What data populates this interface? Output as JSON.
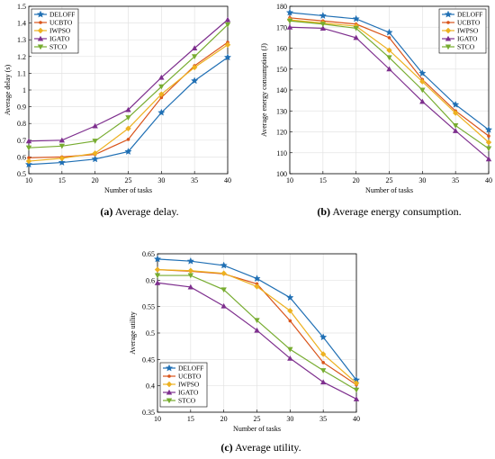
{
  "chart_data": [
    {
      "type": "line",
      "caption_tag": "(a)",
      "caption_text": "Average delay.",
      "xlabel": "Number of tasks",
      "ylabel": "Average delay (s)",
      "x": [
        10,
        15,
        20,
        25,
        30,
        35,
        40
      ],
      "xlim": [
        10,
        40
      ],
      "ylim": [
        0.5,
        1.5
      ],
      "xticks": [
        "10",
        "15",
        "20",
        "25",
        "30",
        "35",
        "40"
      ],
      "yticks": [
        "0.5",
        "0.6",
        "0.7",
        "0.8",
        "0.9",
        "1",
        "1.1",
        "1.2",
        "1.3",
        "1.4",
        "1.5"
      ],
      "ytick_values": [
        0.5,
        0.6,
        0.7,
        0.8,
        0.9,
        1.0,
        1.1,
        1.2,
        1.3,
        1.4,
        1.5
      ],
      "legend_position": "top-left",
      "grid": true,
      "series": [
        {
          "name": "DELOFF",
          "color": "#1f6fb4",
          "marker": "star",
          "values": [
            0.555,
            0.567,
            0.587,
            0.632,
            0.865,
            1.055,
            1.195
          ]
        },
        {
          "name": "UCBTO",
          "color": "#d9541a",
          "marker": "dot",
          "values": [
            0.595,
            0.6,
            0.615,
            0.705,
            0.955,
            1.145,
            1.285
          ]
        },
        {
          "name": "IWPSO",
          "color": "#edb120",
          "marker": "diamond",
          "values": [
            0.575,
            0.592,
            0.622,
            0.77,
            0.975,
            1.135,
            1.27
          ]
        },
        {
          "name": "IGATO",
          "color": "#7e2f8e",
          "marker": "triangle-up",
          "values": [
            0.695,
            0.7,
            0.785,
            0.882,
            1.075,
            1.25,
            1.42
          ]
        },
        {
          "name": "STCO",
          "color": "#77ac30",
          "marker": "triangle-down",
          "values": [
            0.655,
            0.665,
            0.695,
            0.835,
            1.02,
            1.2,
            1.39
          ]
        }
      ]
    },
    {
      "type": "line",
      "caption_tag": "(b)",
      "caption_text": "Average energy consumption.",
      "xlabel": "Number of tasks",
      "ylabel": "Average energy consumption (J)",
      "x": [
        10,
        15,
        20,
        25,
        30,
        35,
        40
      ],
      "xlim": [
        10,
        40
      ],
      "ylim": [
        100,
        180
      ],
      "xticks": [
        "10",
        "15",
        "20",
        "25",
        "30",
        "35",
        "40"
      ],
      "yticks": [
        "100",
        "110",
        "120",
        "130",
        "140",
        "150",
        "160",
        "170",
        "180"
      ],
      "ytick_values": [
        100,
        110,
        120,
        130,
        140,
        150,
        160,
        170,
        180
      ],
      "legend_position": "top-right",
      "grid": true,
      "series": [
        {
          "name": "DELOFF",
          "color": "#1f6fb4",
          "marker": "star",
          "values": [
            177,
            175.5,
            174,
            167.5,
            148,
            133,
            121
          ]
        },
        {
          "name": "UCBTO",
          "color": "#d9541a",
          "marker": "dot",
          "values": [
            174.5,
            173,
            171.5,
            165,
            145,
            130,
            118
          ]
        },
        {
          "name": "IWPSO",
          "color": "#edb120",
          "marker": "diamond",
          "values": [
            173.5,
            172,
            170.5,
            159,
            144,
            129,
            115
          ]
        },
        {
          "name": "IGATO",
          "color": "#7e2f8e",
          "marker": "triangle-up",
          "values": [
            170,
            169.5,
            165,
            150,
            134.5,
            120.5,
            107
          ]
        },
        {
          "name": "STCO",
          "color": "#77ac30",
          "marker": "triangle-down",
          "values": [
            173,
            171.5,
            169.5,
            155.5,
            140,
            123,
            112
          ]
        }
      ]
    },
    {
      "type": "line",
      "caption_tag": "(c)",
      "caption_text": "Average utility.",
      "xlabel": "Number of tasks",
      "ylabel": "Average utility",
      "x": [
        10,
        15,
        20,
        25,
        30,
        35,
        40
      ],
      "xlim": [
        10,
        40
      ],
      "ylim": [
        0.35,
        0.65
      ],
      "xticks": [
        "10",
        "15",
        "20",
        "25",
        "30",
        "35",
        "40"
      ],
      "yticks": [
        "0.35",
        "0.4",
        "0.45",
        "0.5",
        "0.55",
        "0.6",
        "0.65"
      ],
      "ytick_values": [
        0.35,
        0.4,
        0.45,
        0.5,
        0.55,
        0.6,
        0.65
      ],
      "legend_position": "bottom-left",
      "grid": true,
      "series": [
        {
          "name": "DELOFF",
          "color": "#1f6fb4",
          "marker": "star",
          "values": [
            0.64,
            0.636,
            0.628,
            0.603,
            0.567,
            0.492,
            0.411
          ]
        },
        {
          "name": "UCBTO",
          "color": "#d9541a",
          "marker": "dot",
          "values": [
            0.62,
            0.617,
            0.612,
            0.593,
            0.523,
            0.444,
            0.402
          ]
        },
        {
          "name": "IWPSO",
          "color": "#edb120",
          "marker": "diamond",
          "values": [
            0.62,
            0.618,
            0.613,
            0.588,
            0.542,
            0.46,
            0.405
          ]
        },
        {
          "name": "IGATO",
          "color": "#7e2f8e",
          "marker": "triangle-up",
          "values": [
            0.595,
            0.587,
            0.551,
            0.505,
            0.452,
            0.407,
            0.375
          ]
        },
        {
          "name": "STCO",
          "color": "#77ac30",
          "marker": "triangle-down",
          "values": [
            0.609,
            0.609,
            0.582,
            0.524,
            0.469,
            0.429,
            0.392
          ]
        }
      ]
    }
  ]
}
